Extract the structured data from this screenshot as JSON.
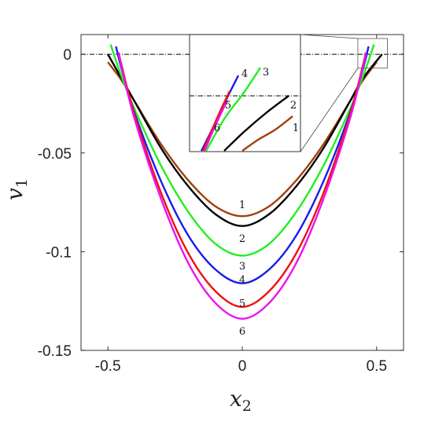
{
  "chart_data": {
    "type": "line",
    "xlabel": "x",
    "xlabel_sub": "2",
    "ylabel": "v",
    "ylabel_sub": "1",
    "xlim": [
      -0.6,
      0.6
    ],
    "ylim": [
      -0.15,
      0.01
    ],
    "xticks": [
      -0.5,
      0,
      0.5
    ],
    "xtick_labels": [
      "-0.5",
      "0",
      "0.5"
    ],
    "yticks": [
      0,
      -0.05,
      -0.1,
      -0.15
    ],
    "ytick_labels": [
      "0",
      "-0.05",
      "-0.1",
      "-0.15"
    ],
    "grid": false,
    "reference_line": {
      "y": 0,
      "style": "dash-dot"
    },
    "series": [
      {
        "name": "1",
        "color": "#a0400a",
        "x": [
          -0.5,
          -0.45,
          -0.4,
          -0.3,
          -0.2,
          -0.1,
          0,
          0.1,
          0.2,
          0.3,
          0.4,
          0.45,
          0.5
        ],
        "values": [
          -0.004,
          -0.013,
          -0.024,
          -0.046,
          -0.064,
          -0.077,
          -0.082,
          -0.077,
          -0.064,
          -0.046,
          -0.024,
          -0.013,
          -0.004
        ]
      },
      {
        "name": "2",
        "color": "#000000",
        "x": [
          -0.5,
          -0.45,
          -0.4,
          -0.3,
          -0.2,
          -0.1,
          0,
          0.1,
          0.2,
          0.3,
          0.4,
          0.45,
          0.52
        ],
        "values": [
          0.0,
          -0.012,
          -0.024,
          -0.048,
          -0.067,
          -0.081,
          -0.087,
          -0.081,
          -0.067,
          -0.048,
          -0.024,
          -0.012,
          0.0
        ]
      },
      {
        "name": "3",
        "color": "#22ee22",
        "x": [
          -0.49,
          -0.45,
          -0.4,
          -0.3,
          -0.2,
          -0.1,
          0,
          0.1,
          0.2,
          0.3,
          0.4,
          0.45,
          0.49
        ],
        "values": [
          0.005,
          -0.011,
          -0.028,
          -0.057,
          -0.08,
          -0.096,
          -0.102,
          -0.096,
          -0.08,
          -0.057,
          -0.028,
          -0.011,
          0.005
        ]
      },
      {
        "name": "4",
        "color": "#1a1aee",
        "x": [
          -0.47,
          -0.45,
          -0.4,
          -0.3,
          -0.2,
          -0.1,
          0,
          0.1,
          0.2,
          0.3,
          0.4,
          0.45,
          0.47
        ],
        "values": [
          0.004,
          -0.007,
          -0.03,
          -0.065,
          -0.092,
          -0.109,
          -0.116,
          -0.109,
          -0.092,
          -0.065,
          -0.03,
          -0.007,
          0.004
        ]
      },
      {
        "name": "5",
        "color": "#ee1111",
        "x": [
          -0.46,
          -0.45,
          -0.4,
          -0.3,
          -0.2,
          -0.1,
          0,
          0.1,
          0.2,
          0.3,
          0.4,
          0.45,
          0.46
        ],
        "values": [
          0.001,
          -0.005,
          -0.031,
          -0.071,
          -0.101,
          -0.12,
          -0.128,
          -0.12,
          -0.101,
          -0.071,
          -0.031,
          -0.005,
          0.001
        ]
      },
      {
        "name": "6",
        "color": "#ee11ee",
        "x": [
          -0.46,
          -0.45,
          -0.4,
          -0.3,
          -0.2,
          -0.1,
          0,
          0.1,
          0.2,
          0.3,
          0.4,
          0.45,
          0.46
        ],
        "values": [
          0.001,
          -0.006,
          -0.033,
          -0.074,
          -0.106,
          -0.126,
          -0.134,
          -0.126,
          -0.106,
          -0.074,
          -0.033,
          -0.006,
          0.001
        ]
      }
    ],
    "curve_labels": [
      {
        "text": "1",
        "x": 0.0,
        "y": -0.076
      },
      {
        "text": "2",
        "x": 0.0,
        "y": -0.093
      },
      {
        "text": "3",
        "x": 0.0,
        "y": -0.107
      },
      {
        "text": "4",
        "x": 0.0,
        "y": -0.114
      },
      {
        "text": "5",
        "x": 0.0,
        "y": -0.126
      },
      {
        "text": "6",
        "x": 0.0,
        "y": -0.14
      }
    ],
    "inset": {
      "zoom_region_x": [
        0.43,
        0.54
      ],
      "zoom_region_y": [
        -0.007,
        0.008
      ],
      "labels": [
        "4",
        "3",
        "5",
        "2",
        "6",
        "1"
      ]
    }
  }
}
